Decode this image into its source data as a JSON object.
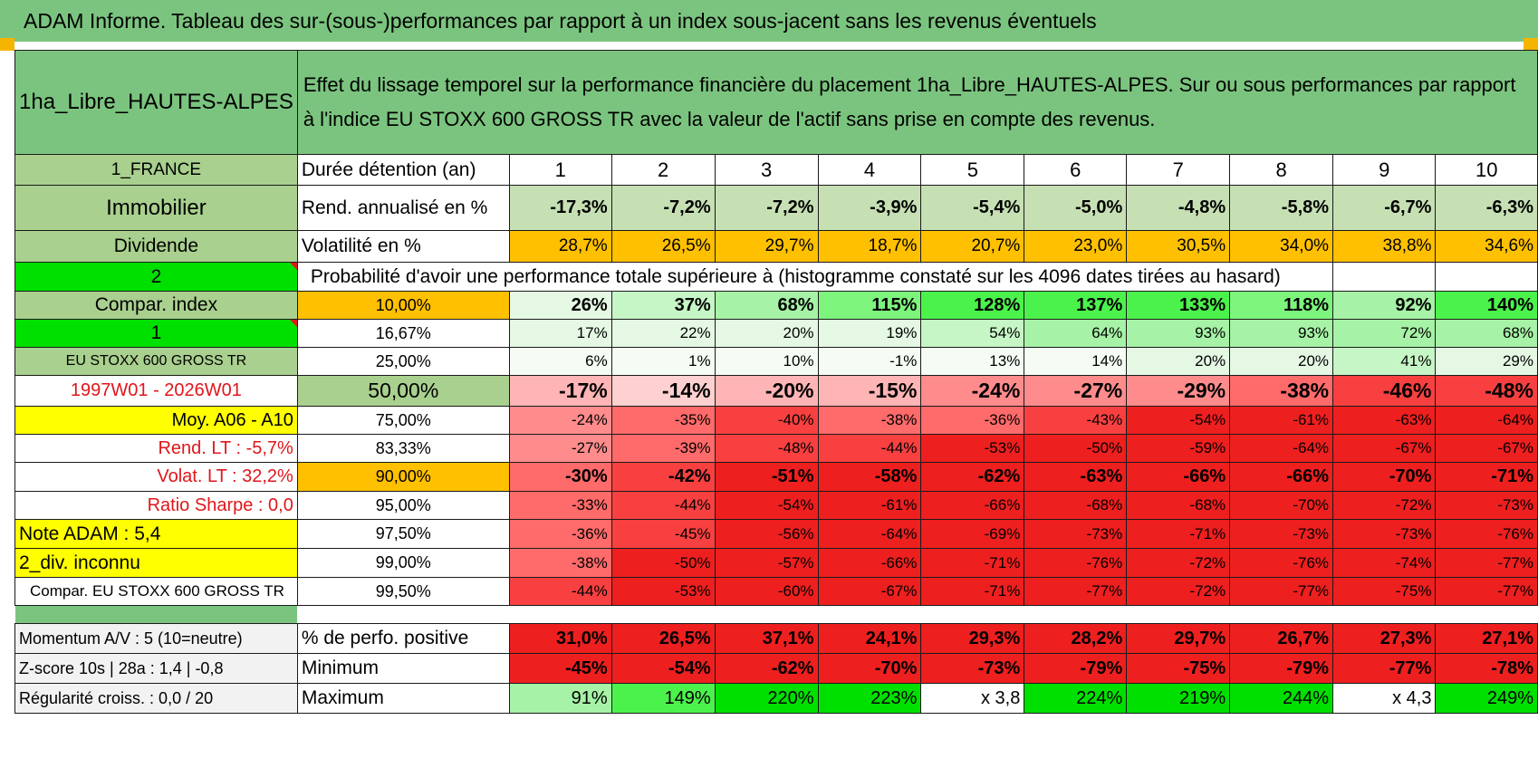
{
  "title": "ADAM Informe. Tableau des sur-(sous-)performances par rapport à un index sous-jacent sans les revenus éventuels",
  "fund_name": "1ha_Libre_HAUTES-ALPES",
  "description": "Effet du lissage temporel sur la performance financière du placement 1ha_Libre_HAUTES-ALPES. Sur ou sous performances par rapport à l'indice EU STOXX 600 GROSS TR avec la valeur de l'actif sans prise en compte des revenus.",
  "left_labels": {
    "country": "1_FRANCE",
    "category": "Immobilier",
    "type": "Dividende",
    "selector_2": "2",
    "compar_index": "Compar. index",
    "selector_1": "1",
    "index_name": "EU STOXX 600 GROSS TR",
    "period": "1997W01 - 2026W01",
    "moy": "Moy. A06 - A10",
    "rend_lt": "Rend. LT :    -5,7%",
    "volat_lt": "Volat. LT :    32,2%",
    "sharpe": "Ratio Sharpe :     0,0",
    "note": "Note ADAM : 5,4",
    "div": "2_div. inconnu",
    "compar": "Compar. EU STOXX 600 GROSS TR"
  },
  "row_labels": {
    "duration": "Durée détention (an)",
    "rend": "Rend. annualisé en %",
    "volat": "Volatilité en %",
    "probability": "Probabilité d'avoir une performance totale supérieure à (histogramme constaté sur les 4096 dates tirées au hasard)"
  },
  "years": [
    "1",
    "2",
    "3",
    "4",
    "5",
    "6",
    "7",
    "8",
    "9",
    "10"
  ],
  "rend": [
    "-17,3%",
    "-7,2%",
    "-7,2%",
    "-3,9%",
    "-5,4%",
    "-5,0%",
    "-4,8%",
    "-5,8%",
    "-6,7%",
    "-6,3%"
  ],
  "volat": [
    "28,7%",
    "26,5%",
    "29,7%",
    "18,7%",
    "20,7%",
    "23,0%",
    "30,5%",
    "34,0%",
    "38,8%",
    "34,6%"
  ],
  "prob_rows": [
    {
      "pct": "10,00%",
      "values": [
        "26%",
        "37%",
        "68%",
        "115%",
        "128%",
        "137%",
        "133%",
        "118%",
        "92%",
        "140%"
      ]
    },
    {
      "pct": "16,67%",
      "values": [
        "17%",
        "22%",
        "20%",
        "19%",
        "54%",
        "64%",
        "93%",
        "93%",
        "72%",
        "68%"
      ]
    },
    {
      "pct": "25,00%",
      "values": [
        "6%",
        "1%",
        "10%",
        "-1%",
        "13%",
        "14%",
        "20%",
        "20%",
        "41%",
        "29%"
      ]
    },
    {
      "pct": "50,00%",
      "values": [
        "-17%",
        "-14%",
        "-20%",
        "-15%",
        "-24%",
        "-27%",
        "-29%",
        "-38%",
        "-46%",
        "-48%"
      ]
    },
    {
      "pct": "75,00%",
      "values": [
        "-24%",
        "-35%",
        "-40%",
        "-38%",
        "-36%",
        "-43%",
        "-54%",
        "-61%",
        "-63%",
        "-64%"
      ]
    },
    {
      "pct": "83,33%",
      "values": [
        "-27%",
        "-39%",
        "-48%",
        "-44%",
        "-53%",
        "-50%",
        "-59%",
        "-64%",
        "-67%",
        "-67%"
      ]
    },
    {
      "pct": "90,00%",
      "values": [
        "-30%",
        "-42%",
        "-51%",
        "-58%",
        "-62%",
        "-63%",
        "-66%",
        "-66%",
        "-70%",
        "-71%"
      ]
    },
    {
      "pct": "95,00%",
      "values": [
        "-33%",
        "-44%",
        "-54%",
        "-61%",
        "-66%",
        "-68%",
        "-68%",
        "-70%",
        "-72%",
        "-73%"
      ]
    },
    {
      "pct": "97,50%",
      "values": [
        "-36%",
        "-45%",
        "-56%",
        "-64%",
        "-69%",
        "-73%",
        "-71%",
        "-73%",
        "-73%",
        "-76%"
      ]
    },
    {
      "pct": "99,00%",
      "values": [
        "-38%",
        "-50%",
        "-57%",
        "-66%",
        "-71%",
        "-76%",
        "-72%",
        "-76%",
        "-74%",
        "-77%"
      ]
    },
    {
      "pct": "99,50%",
      "values": [
        "-44%",
        "-53%",
        "-60%",
        "-67%",
        "-71%",
        "-77%",
        "-72%",
        "-77%",
        "-75%",
        "-77%"
      ]
    }
  ],
  "bottom": [
    {
      "left": "Momentum A/V : 5 (10=neutre)",
      "label": "% de perfo. positive",
      "values": [
        "31,0%",
        "26,5%",
        "37,1%",
        "24,1%",
        "29,3%",
        "28,2%",
        "29,7%",
        "26,7%",
        "27,3%",
        "27,1%"
      ]
    },
    {
      "left": "Z-score 10s | 28a : 1,4 | -0,8",
      "label": "Minimum",
      "values": [
        "-45%",
        "-54%",
        "-62%",
        "-70%",
        "-73%",
        "-79%",
        "-75%",
        "-79%",
        "-77%",
        "-78%"
      ]
    },
    {
      "left": "Régularité croiss. : 0,0 / 20",
      "label": "Maximum",
      "values": [
        "91%",
        "149%",
        "220%",
        "223%",
        "x 3,8",
        "224%",
        "219%",
        "244%",
        "x 4,3",
        "249%"
      ]
    }
  ],
  "colors": {
    "header_green": "#7bc47f",
    "bright_green": "#00e000",
    "yellow": "#ffff00",
    "orange": "#ffc000",
    "red_text": "#e0161b"
  }
}
